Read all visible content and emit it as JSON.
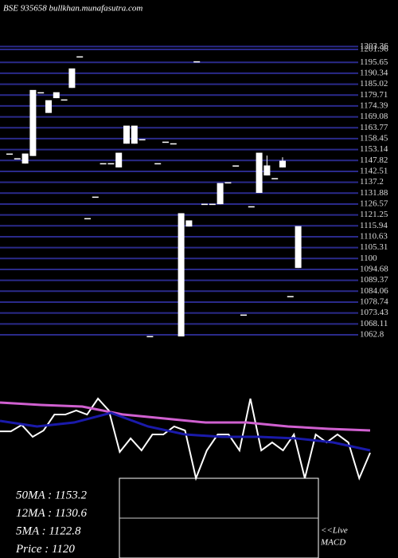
{
  "chart_data": {
    "type": "candlestick",
    "title": "BSE 935658  bullkhan.munafasutra.com",
    "open": [
      1151,
      1148.7,
      1146.3,
      1150,
      1180.9,
      1171,
      1178.2,
      1177.4,
      1183.2,
      1198.4,
      1119.5,
      1130,
      1146.3,
      1146.3,
      1144.4,
      1156,
      1156,
      1158,
      1062,
      1146.3,
      1156.8,
      1156,
      1062,
      1115.6,
      1196,
      1126.5,
      1126.5,
      1126.5,
      1137,
      1145.2,
      1072.5,
      1125.3,
      1132,
      1140.5,
      1139,
      1144.4,
      1081.5,
      1095.4
    ],
    "close": [
      1151,
      1148.7,
      1151,
      1182,
      1180.9,
      1177,
      1180.9,
      1177.4,
      1192.5,
      1198.4,
      1119.5,
      1130,
      1146.3,
      1146.3,
      1151.4,
      1164.6,
      1164.6,
      1158,
      1062,
      1146.3,
      1156.8,
      1156,
      1121.9,
      1118.4,
      1196,
      1126.5,
      1126.5,
      1136.6,
      1137,
      1145.2,
      1072.5,
      1125.3,
      1151.4,
      1145.2,
      1139,
      1147.5,
      1081.5,
      1115.6
    ],
    "high": [
      1151,
      1148.7,
      1151,
      1182,
      1180.9,
      1177,
      1180.9,
      1177.4,
      1192.5,
      1198.4,
      1119.5,
      1130,
      1146.3,
      1146.3,
      1151.4,
      1164.6,
      1164.6,
      1158,
      1062,
      1146.3,
      1156.8,
      1156,
      1121.9,
      1118.4,
      1196,
      1126.5,
      1126.5,
      1136.6,
      1137,
      1145.2,
      1072.5,
      1125.3,
      1151.4,
      1150.2,
      1139,
      1149.4,
      1081.5,
      1115.6
    ],
    "low": [
      1151,
      1148.7,
      1146.3,
      1150,
      1180.9,
      1171,
      1178.2,
      1177.4,
      1183.2,
      1198.4,
      1119.5,
      1130,
      1146.3,
      1146.3,
      1144.4,
      1156,
      1156,
      1158,
      1062,
      1146.3,
      1156.8,
      1156,
      1062,
      1115.6,
      1196,
      1126.5,
      1126.5,
      1126.5,
      1137,
      1145.2,
      1072.5,
      1125.3,
      1132,
      1140.5,
      1139,
      1144.4,
      1081.5,
      1095.4
    ],
    "color": "#ffffff",
    "ylim": [
      1062.8,
      1201.96
    ],
    "yticks": [
      1203.36,
      1201.96,
      1195.65,
      1190.34,
      1185.02,
      1179.71,
      1174.39,
      1169.08,
      1163.77,
      1158.45,
      1153.14,
      1147.82,
      1142.51,
      1137.2,
      1131.88,
      1126.57,
      1121.25,
      1115.94,
      1110.63,
      1105.31,
      1100,
      1094.68,
      1089.37,
      1084.06,
      1078.74,
      1073.43,
      1068.11,
      1062.8
    ],
    "grid": true,
    "grid_color": "#2a2a8a",
    "indicator": {
      "type": "line",
      "ylim": [
        0,
        100
      ],
      "series": [
        {
          "color": "#ffffff",
          "values": [
            53,
            53,
            59.2,
            47.7,
            53.8,
            69.2,
            69.2,
            73.1,
            69.2,
            84.6,
            73.1,
            33.1,
            46.2,
            34.6,
            50,
            50,
            57.7,
            53.8,
            7.7,
            34.6,
            50,
            50,
            34.6,
            84.6,
            34.6,
            42.3,
            34.6,
            50,
            7.7,
            50,
            42.3,
            50,
            42.3,
            7.7,
            32.3
          ]
        },
        {
          "color": "#d060d0",
          "values": [
            80.8,
            78.5,
            76.9,
            69.2,
            65.4,
            61.5,
            61.5,
            57.7,
            55.4,
            53.8
          ]
        },
        {
          "color": "#1a1aaa",
          "values": [
            63.1,
            57.7,
            61.5,
            70.8,
            57.7,
            50,
            47.7,
            47.7,
            46.2,
            42.3,
            34.6
          ]
        }
      ]
    },
    "readouts": [
      "50MA : 1153.2",
      "12MA : 1130.6",
      "5MA : 1122.8",
      "Price  : 1120"
    ],
    "macd_label": [
      "<<Live",
      "MACD"
    ]
  }
}
